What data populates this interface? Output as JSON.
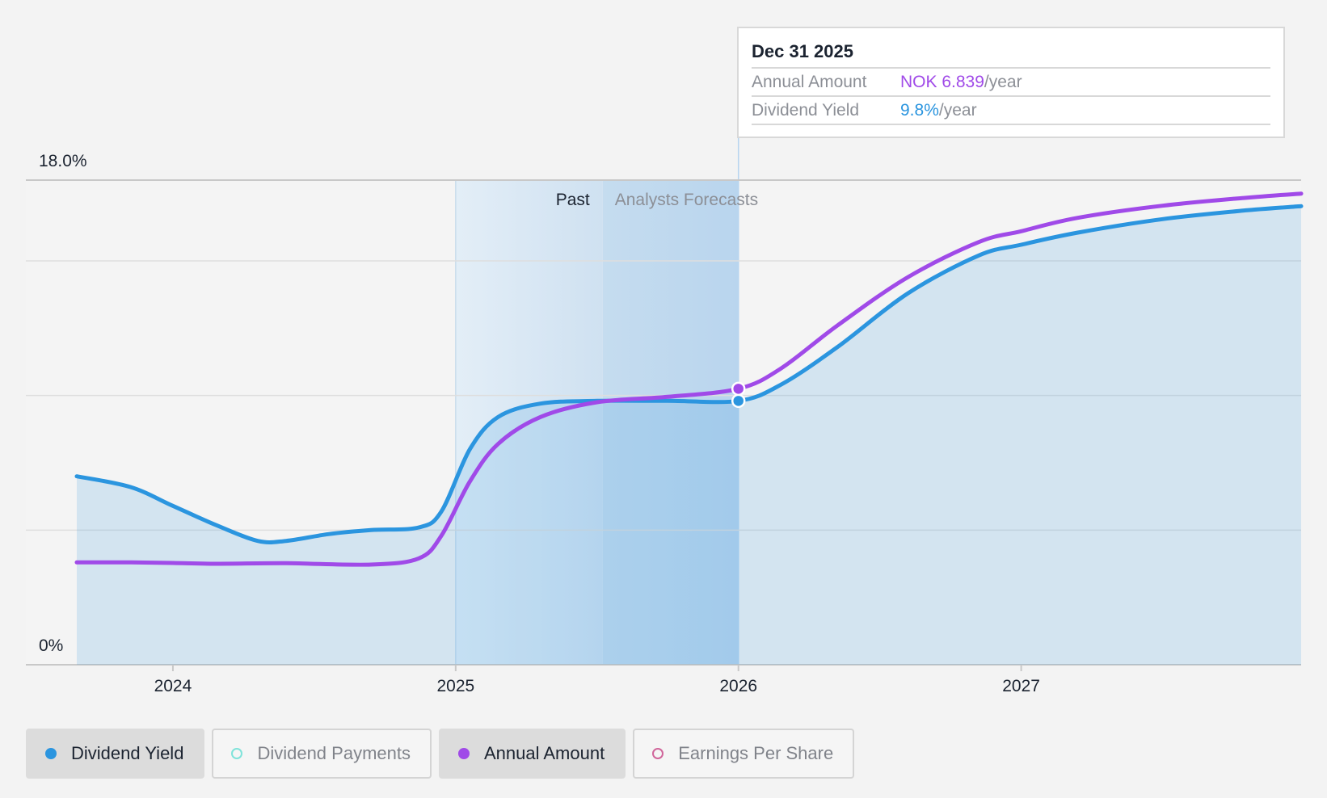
{
  "colors": {
    "yield": "#2b95df",
    "annual": "#a04ae8",
    "payments": "#7fe3da",
    "eps": "#d0659a",
    "text_dark": "#1b2330",
    "text_muted": "#8c8f96"
  },
  "chart_data": {
    "type": "line",
    "y_axis": {
      "top_label": "18.0%",
      "bottom_label": "0%",
      "ylim": [
        0,
        18
      ],
      "gridlines": [
        0,
        5,
        10,
        15,
        18
      ]
    },
    "x_axis": {
      "ticks": [
        {
          "label": "2024",
          "value": 2024.0
        },
        {
          "label": "2025",
          "value": 2025.0
        },
        {
          "label": "2026",
          "value": 2026.0
        },
        {
          "label": "2027",
          "value": 2027.0
        }
      ],
      "xlim": [
        2023.48,
        2027.99
      ]
    },
    "regions": {
      "past_label": "Past",
      "forecast_label": "Analysts Forecasts",
      "past_start": 2025.0,
      "forecast_start": 2025.52,
      "divider": 2026.0
    },
    "series": [
      {
        "name": "Dividend Yield",
        "color": "#2b95df",
        "filled": true,
        "points": [
          [
            2023.66,
            7.0
          ],
          [
            2023.85,
            6.6
          ],
          [
            2024.0,
            5.9
          ],
          [
            2024.15,
            5.2
          ],
          [
            2024.3,
            4.6
          ],
          [
            2024.4,
            4.6
          ],
          [
            2024.55,
            4.85
          ],
          [
            2024.7,
            5.0
          ],
          [
            2024.87,
            5.1
          ],
          [
            2024.95,
            5.7
          ],
          [
            2025.05,
            8.0
          ],
          [
            2025.15,
            9.2
          ],
          [
            2025.3,
            9.7
          ],
          [
            2025.5,
            9.8
          ],
          [
            2025.75,
            9.8
          ],
          [
            2026.0,
            9.8
          ],
          [
            2026.15,
            10.4
          ],
          [
            2026.35,
            11.8
          ],
          [
            2026.6,
            13.8
          ],
          [
            2026.85,
            15.2
          ],
          [
            2027.0,
            15.6
          ],
          [
            2027.2,
            16.05
          ],
          [
            2027.5,
            16.55
          ],
          [
            2027.8,
            16.88
          ],
          [
            2027.99,
            17.03
          ]
        ]
      },
      {
        "name": "Annual Amount",
        "color": "#a04ae8",
        "filled": false,
        "points": [
          [
            2023.66,
            3.8
          ],
          [
            2023.85,
            3.8
          ],
          [
            2024.0,
            3.78
          ],
          [
            2024.15,
            3.75
          ],
          [
            2024.4,
            3.77
          ],
          [
            2024.7,
            3.72
          ],
          [
            2024.87,
            3.95
          ],
          [
            2024.95,
            4.8
          ],
          [
            2025.05,
            6.8
          ],
          [
            2025.15,
            8.2
          ],
          [
            2025.3,
            9.2
          ],
          [
            2025.5,
            9.75
          ],
          [
            2025.75,
            9.95
          ],
          [
            2026.0,
            10.25
          ],
          [
            2026.15,
            11.0
          ],
          [
            2026.35,
            12.6
          ],
          [
            2026.6,
            14.4
          ],
          [
            2026.85,
            15.7
          ],
          [
            2027.0,
            16.1
          ],
          [
            2027.2,
            16.6
          ],
          [
            2027.5,
            17.05
          ],
          [
            2027.8,
            17.35
          ],
          [
            2027.99,
            17.5
          ]
        ]
      }
    ],
    "tooltip": {
      "date": "Dec 31 2025",
      "rows": [
        {
          "label": "Annual Amount",
          "value": "NOK 6.839",
          "unit": "/year",
          "color": "#a04ae8"
        },
        {
          "label": "Dividend Yield",
          "value": "9.8%",
          "unit": "/year",
          "color": "#2b95df"
        }
      ]
    }
  },
  "legend": [
    {
      "label": "Dividend Yield",
      "active": true,
      "color": "#2b95df",
      "icon": "filled-dot-icon"
    },
    {
      "label": "Dividend Payments",
      "active": false,
      "color": "#7fe3da",
      "icon": "hollow-dot-icon"
    },
    {
      "label": "Annual Amount",
      "active": true,
      "color": "#a04ae8",
      "icon": "filled-dot-icon"
    },
    {
      "label": "Earnings Per Share",
      "active": false,
      "color": "#d0659a",
      "icon": "hollow-dot-icon"
    }
  ]
}
